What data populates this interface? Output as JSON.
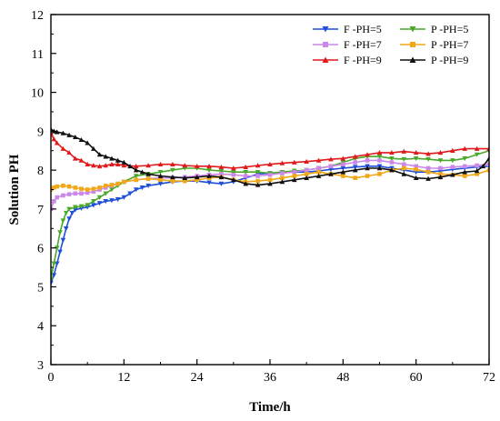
{
  "chart_data": {
    "type": "line",
    "xlabel": "Time/h",
    "ylabel": "Solution PH",
    "xlim": [
      0,
      72
    ],
    "ylim": [
      3,
      12
    ],
    "xticks": [
      0,
      12,
      24,
      36,
      48,
      60,
      72
    ],
    "yticks": [
      3,
      4,
      5,
      6,
      7,
      8,
      9,
      10,
      11,
      12
    ],
    "grid": false,
    "legend_position": "top-right",
    "series": [
      {
        "name": "F -PH=5",
        "color": "#1f4fd8",
        "marker": "triangle-down",
        "points": [
          [
            0,
            5.1
          ],
          [
            0.5,
            5.3
          ],
          [
            1,
            5.6
          ],
          [
            1.5,
            5.9
          ],
          [
            2,
            6.2
          ],
          [
            2.5,
            6.5
          ],
          [
            3,
            6.75
          ],
          [
            3.5,
            6.9
          ],
          [
            4,
            6.98
          ],
          [
            5,
            7.02
          ],
          [
            6,
            7.05
          ],
          [
            7,
            7.1
          ],
          [
            8,
            7.15
          ],
          [
            9,
            7.2
          ],
          [
            10,
            7.22
          ],
          [
            11,
            7.25
          ],
          [
            12,
            7.3
          ],
          [
            13,
            7.4
          ],
          [
            14,
            7.5
          ],
          [
            15,
            7.55
          ],
          [
            16,
            7.6
          ],
          [
            18,
            7.65
          ],
          [
            20,
            7.7
          ],
          [
            22,
            7.72
          ],
          [
            24,
            7.72
          ],
          [
            26,
            7.68
          ],
          [
            28,
            7.65
          ],
          [
            30,
            7.7
          ],
          [
            32,
            7.8
          ],
          [
            34,
            7.9
          ],
          [
            36,
            7.92
          ],
          [
            38,
            7.95
          ],
          [
            40,
            7.95
          ],
          [
            42,
            7.95
          ],
          [
            44,
            7.98
          ],
          [
            46,
            8.02
          ],
          [
            48,
            8.05
          ],
          [
            50,
            8.08
          ],
          [
            52,
            8.1
          ],
          [
            54,
            8.1
          ],
          [
            56,
            8.05
          ],
          [
            58,
            8.0
          ],
          [
            60,
            7.95
          ],
          [
            62,
            7.95
          ],
          [
            64,
            7.98
          ],
          [
            66,
            8.02
          ],
          [
            68,
            8.05
          ],
          [
            70,
            8.08
          ],
          [
            72,
            8.1
          ]
        ]
      },
      {
        "name": "P -PH=5",
        "color": "#4aa82a",
        "marker": "triangle-down",
        "points": [
          [
            0,
            5.2
          ],
          [
            0.5,
            5.6
          ],
          [
            1,
            6.0
          ],
          [
            1.5,
            6.4
          ],
          [
            2,
            6.7
          ],
          [
            2.5,
            6.9
          ],
          [
            3,
            7.0
          ],
          [
            4,
            7.05
          ],
          [
            5,
            7.07
          ],
          [
            6,
            7.1
          ],
          [
            7,
            7.2
          ],
          [
            8,
            7.3
          ],
          [
            9,
            7.4
          ],
          [
            10,
            7.5
          ],
          [
            11,
            7.6
          ],
          [
            12,
            7.7
          ],
          [
            14,
            7.85
          ],
          [
            16,
            7.9
          ],
          [
            18,
            7.95
          ],
          [
            20,
            8.0
          ],
          [
            22,
            8.05
          ],
          [
            24,
            8.05
          ],
          [
            26,
            8.0
          ],
          [
            28,
            7.98
          ],
          [
            30,
            7.95
          ],
          [
            32,
            7.95
          ],
          [
            34,
            7.95
          ],
          [
            36,
            7.92
          ],
          [
            38,
            7.95
          ],
          [
            40,
            7.98
          ],
          [
            42,
            8.0
          ],
          [
            44,
            8.05
          ],
          [
            46,
            8.1
          ],
          [
            48,
            8.2
          ],
          [
            50,
            8.3
          ],
          [
            52,
            8.35
          ],
          [
            54,
            8.35
          ],
          [
            56,
            8.3
          ],
          [
            58,
            8.28
          ],
          [
            60,
            8.3
          ],
          [
            62,
            8.28
          ],
          [
            64,
            8.25
          ],
          [
            66,
            8.25
          ],
          [
            68,
            8.3
          ],
          [
            70,
            8.4
          ],
          [
            72,
            8.5
          ]
        ]
      },
      {
        "name": "F -PH=7",
        "color": "#cc88e8",
        "marker": "square",
        "points": [
          [
            0,
            7.0
          ],
          [
            0.5,
            7.2
          ],
          [
            1,
            7.3
          ],
          [
            2,
            7.35
          ],
          [
            3,
            7.38
          ],
          [
            4,
            7.4
          ],
          [
            5,
            7.4
          ],
          [
            6,
            7.42
          ],
          [
            7,
            7.45
          ],
          [
            8,
            7.5
          ],
          [
            9,
            7.55
          ],
          [
            10,
            7.6
          ],
          [
            11,
            7.65
          ],
          [
            12,
            7.7
          ],
          [
            14,
            7.75
          ],
          [
            16,
            7.78
          ],
          [
            18,
            7.8
          ],
          [
            20,
            7.8
          ],
          [
            22,
            7.82
          ],
          [
            24,
            7.85
          ],
          [
            26,
            7.88
          ],
          [
            28,
            7.9
          ],
          [
            30,
            7.88
          ],
          [
            32,
            7.85
          ],
          [
            34,
            7.85
          ],
          [
            36,
            7.88
          ],
          [
            38,
            7.92
          ],
          [
            40,
            7.95
          ],
          [
            42,
            8.0
          ],
          [
            44,
            8.05
          ],
          [
            46,
            8.1
          ],
          [
            48,
            8.15
          ],
          [
            50,
            8.2
          ],
          [
            52,
            8.25
          ],
          [
            54,
            8.25
          ],
          [
            56,
            8.2
          ],
          [
            58,
            8.15
          ],
          [
            60,
            8.1
          ],
          [
            62,
            8.05
          ],
          [
            64,
            8.05
          ],
          [
            66,
            8.08
          ],
          [
            68,
            8.1
          ],
          [
            70,
            8.12
          ],
          [
            72,
            8.15
          ]
        ]
      },
      {
        "name": "P -PH=7",
        "color": "#f0a818",
        "marker": "square",
        "points": [
          [
            0,
            7.5
          ],
          [
            0.5,
            7.55
          ],
          [
            1,
            7.58
          ],
          [
            2,
            7.6
          ],
          [
            3,
            7.58
          ],
          [
            4,
            7.55
          ],
          [
            5,
            7.52
          ],
          [
            6,
            7.5
          ],
          [
            7,
            7.52
          ],
          [
            8,
            7.55
          ],
          [
            9,
            7.6
          ],
          [
            10,
            7.62
          ],
          [
            11,
            7.65
          ],
          [
            12,
            7.7
          ],
          [
            14,
            7.75
          ],
          [
            16,
            7.78
          ],
          [
            18,
            7.75
          ],
          [
            20,
            7.72
          ],
          [
            22,
            7.72
          ],
          [
            24,
            7.75
          ],
          [
            26,
            7.8
          ],
          [
            28,
            7.82
          ],
          [
            30,
            7.75
          ],
          [
            32,
            7.7
          ],
          [
            34,
            7.72
          ],
          [
            36,
            7.75
          ],
          [
            38,
            7.8
          ],
          [
            40,
            7.85
          ],
          [
            42,
            7.9
          ],
          [
            44,
            7.95
          ],
          [
            46,
            7.9
          ],
          [
            48,
            7.85
          ],
          [
            50,
            7.8
          ],
          [
            52,
            7.85
          ],
          [
            54,
            7.9
          ],
          [
            56,
            8.0
          ],
          [
            58,
            8.05
          ],
          [
            60,
            8.02
          ],
          [
            62,
            7.95
          ],
          [
            64,
            7.9
          ],
          [
            66,
            7.88
          ],
          [
            68,
            7.85
          ],
          [
            70,
            7.9
          ],
          [
            72,
            8.0
          ]
        ]
      },
      {
        "name": "F -PH=9",
        "color": "#e0191b",
        "marker": "triangle-up",
        "points": [
          [
            0,
            8.95
          ],
          [
            0.5,
            8.8
          ],
          [
            1,
            8.7
          ],
          [
            2,
            8.55
          ],
          [
            3,
            8.45
          ],
          [
            4,
            8.3
          ],
          [
            5,
            8.25
          ],
          [
            6,
            8.15
          ],
          [
            7,
            8.12
          ],
          [
            8,
            8.1
          ],
          [
            9,
            8.12
          ],
          [
            10,
            8.15
          ],
          [
            11,
            8.15
          ],
          [
            12,
            8.12
          ],
          [
            14,
            8.1
          ],
          [
            16,
            8.12
          ],
          [
            18,
            8.15
          ],
          [
            20,
            8.15
          ],
          [
            22,
            8.12
          ],
          [
            24,
            8.1
          ],
          [
            26,
            8.1
          ],
          [
            28,
            8.08
          ],
          [
            30,
            8.05
          ],
          [
            32,
            8.08
          ],
          [
            34,
            8.12
          ],
          [
            36,
            8.15
          ],
          [
            38,
            8.18
          ],
          [
            40,
            8.2
          ],
          [
            42,
            8.22
          ],
          [
            44,
            8.25
          ],
          [
            46,
            8.28
          ],
          [
            48,
            8.3
          ],
          [
            50,
            8.35
          ],
          [
            52,
            8.4
          ],
          [
            54,
            8.45
          ],
          [
            56,
            8.45
          ],
          [
            58,
            8.48
          ],
          [
            60,
            8.45
          ],
          [
            62,
            8.42
          ],
          [
            64,
            8.45
          ],
          [
            66,
            8.5
          ],
          [
            68,
            8.55
          ],
          [
            70,
            8.55
          ],
          [
            72,
            8.55
          ]
        ]
      },
      {
        "name": "P -PH=9",
        "color": "#111111",
        "marker": "triangle-up",
        "points": [
          [
            0,
            9.05
          ],
          [
            0.5,
            9.0
          ],
          [
            1,
            8.98
          ],
          [
            2,
            8.95
          ],
          [
            3,
            8.9
          ],
          [
            4,
            8.85
          ],
          [
            5,
            8.78
          ],
          [
            6,
            8.7
          ],
          [
            7,
            8.55
          ],
          [
            8,
            8.4
          ],
          [
            9,
            8.35
          ],
          [
            10,
            8.3
          ],
          [
            11,
            8.25
          ],
          [
            12,
            8.2
          ],
          [
            13,
            8.1
          ],
          [
            14,
            8.0
          ],
          [
            15,
            7.95
          ],
          [
            16,
            7.9
          ],
          [
            18,
            7.85
          ],
          [
            20,
            7.82
          ],
          [
            22,
            7.8
          ],
          [
            24,
            7.82
          ],
          [
            26,
            7.85
          ],
          [
            28,
            7.82
          ],
          [
            30,
            7.75
          ],
          [
            32,
            7.65
          ],
          [
            34,
            7.62
          ],
          [
            36,
            7.65
          ],
          [
            38,
            7.7
          ],
          [
            40,
            7.75
          ],
          [
            42,
            7.8
          ],
          [
            44,
            7.85
          ],
          [
            46,
            7.9
          ],
          [
            48,
            7.95
          ],
          [
            50,
            8.0
          ],
          [
            52,
            8.05
          ],
          [
            54,
            8.05
          ],
          [
            56,
            8.0
          ],
          [
            58,
            7.9
          ],
          [
            60,
            7.8
          ],
          [
            62,
            7.78
          ],
          [
            64,
            7.82
          ],
          [
            66,
            7.88
          ],
          [
            68,
            7.95
          ],
          [
            70,
            7.98
          ],
          [
            71,
            8.1
          ],
          [
            72,
            8.3
          ]
        ]
      }
    ]
  }
}
